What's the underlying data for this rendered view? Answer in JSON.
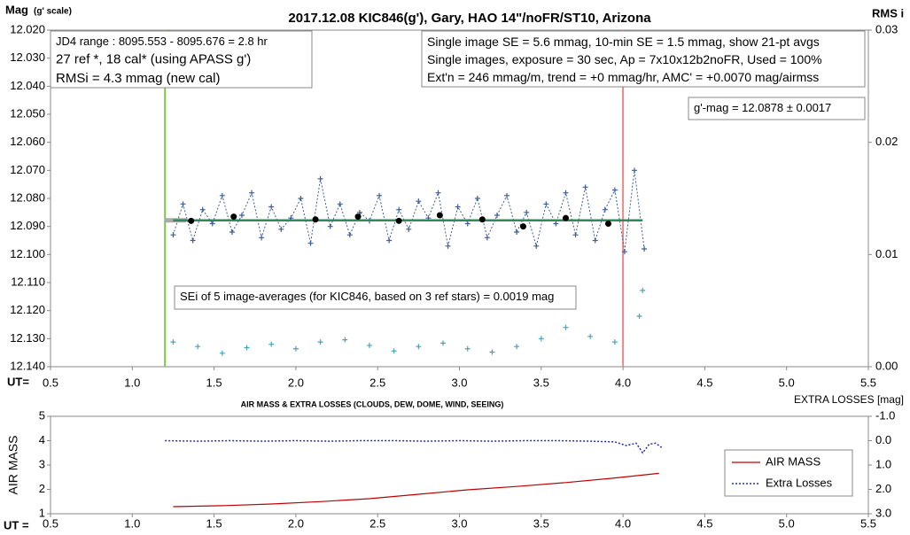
{
  "chart_data": [
    {
      "type": "line",
      "title": "2017.12.08  KIC846(g'),  Gary, HAO  14\"/noFR/ST10,  Arizona",
      "y_label": "Mag",
      "y_label_note": "(g' scale)",
      "y2_label": "RMS i",
      "x_label": "UT=",
      "xlim": [
        0.5,
        5.5
      ],
      "xticks": [
        0.5,
        {
          "value": 1,
          "label": "1.0"
        },
        1.5,
        {
          "value": 2,
          "label": "2.0"
        },
        2.5,
        {
          "value": 3,
          "label": "3.0"
        },
        3.5,
        {
          "value": 4,
          "label": "4.0"
        },
        4.5,
        {
          "value": 5,
          "label": "5.0"
        },
        5.5
      ],
      "ylim": [
        12.14,
        12.02
      ],
      "yticks": [
        {
          "value": 12.02,
          "label": "12.020"
        },
        {
          "value": 12.03,
          "label": "12.030"
        },
        {
          "value": 12.04,
          "label": "12.040"
        },
        {
          "value": 12.05,
          "label": "12.050"
        },
        {
          "value": 12.06,
          "label": "12.060"
        },
        {
          "value": 12.07,
          "label": "12.070"
        },
        {
          "value": 12.08,
          "label": "12.080"
        },
        {
          "value": 12.09,
          "label": "12.090"
        },
        {
          "value": 12.1,
          "label": "12.100"
        },
        {
          "value": 12.11,
          "label": "12.110"
        },
        {
          "value": 12.12,
          "label": "12.120"
        },
        {
          "value": 12.13,
          "label": "12.130"
        },
        {
          "value": 12.14,
          "label": "12.140"
        }
      ],
      "y2lim": [
        0,
        0.03
      ],
      "y2ticks": [
        {
          "value": 0,
          "label": "0.00"
        },
        {
          "value": 0.01,
          "label": "0.01"
        },
        {
          "value": 0.02,
          "label": "0.02"
        },
        {
          "value": 0.03,
          "label": "0.03"
        }
      ],
      "vlines": [
        {
          "x": 1.2,
          "color": "#7ac943"
        },
        {
          "x": 4.0,
          "color": "#ee8888"
        }
      ],
      "series": [
        {
          "color": "#aaaaaa",
          "line": "solid",
          "width": 5,
          "marker": "none",
          "x": [
            1.2,
            1.33
          ],
          "values": [
            12.0878,
            12.0878
          ]
        },
        {
          "color": "#3d5e9e",
          "line": "dotted",
          "width": 1,
          "marker": "cross",
          "x": [
            1.25,
            1.31,
            1.37,
            1.43,
            1.49,
            1.55,
            1.61,
            1.67,
            1.73,
            1.79,
            1.85,
            1.91,
            1.97,
            2.03,
            2.09,
            2.15,
            2.21,
            2.27,
            2.33,
            2.39,
            2.45,
            2.51,
            2.57,
            2.63,
            2.69,
            2.75,
            2.81,
            2.87,
            2.93,
            2.99,
            3.05,
            3.11,
            3.17,
            3.23,
            3.29,
            3.35,
            3.41,
            3.47,
            3.53,
            3.59,
            3.65,
            3.71,
            3.77,
            3.83,
            3.89,
            3.95,
            4.01,
            4.07,
            4.13
          ],
          "values": [
            12.093,
            12.082,
            12.095,
            12.084,
            12.089,
            12.079,
            12.092,
            12.086,
            12.078,
            12.094,
            12.083,
            12.091,
            12.087,
            12.08,
            12.096,
            12.073,
            12.09,
            12.082,
            12.093,
            12.085,
            12.088,
            12.079,
            12.095,
            12.084,
            12.091,
            12.081,
            12.087,
            12.078,
            12.097,
            12.083,
            12.089,
            12.08,
            12.094,
            12.086,
            12.079,
            12.092,
            12.085,
            12.097,
            12.082,
            12.089,
            12.078,
            12.093,
            12.076,
            12.095,
            12.084,
            12.077,
            12.099,
            12.07,
            12.098
          ]
        },
        {
          "color": "#2e8b57",
          "line": "solid",
          "width": 2.5,
          "marker": "none",
          "x": [
            1.25,
            4.12
          ],
          "values": [
            12.0878,
            12.0878
          ]
        },
        {
          "color": "#000000",
          "line": "none",
          "marker": "dot",
          "x": [
            1.36,
            1.62,
            2.12,
            2.38,
            2.63,
            2.88,
            3.14,
            3.39,
            3.65,
            3.91
          ],
          "values": [
            12.088,
            12.0865,
            12.0875,
            12.0865,
            12.088,
            12.086,
            12.0875,
            12.09,
            12.087,
            12.089
          ]
        },
        {
          "color": "#4aa3b5",
          "line": "none",
          "marker": "cross",
          "axis": "y2",
          "x": [
            1.25,
            1.4,
            1.55,
            1.7,
            1.85,
            2.0,
            2.15,
            2.3,
            2.45,
            2.6,
            2.75,
            2.9,
            3.05,
            3.2,
            3.35,
            3.5,
            3.65,
            3.8,
            3.95,
            4.1,
            4.12
          ],
          "values": [
            0.0022,
            0.0018,
            0.0012,
            0.0017,
            0.002,
            0.0016,
            0.0022,
            0.0024,
            0.0019,
            0.0014,
            0.0018,
            0.0021,
            0.0016,
            0.0013,
            0.0018,
            0.0025,
            0.0035,
            0.0027,
            0.0022,
            0.0045,
            0.0068
          ]
        }
      ],
      "annotations": [
        {
          "lines": [
            "JD4 range : 8095.553 - 8095.676 = 2.8  hr",
            "27 ref *, 18 cal* (using APASS g')",
            "RMSi = 4.3 mmag (new cal)"
          ]
        },
        {
          "lines": [
            "Single image SE = 5.6 mmag, 10-min SE = 1.5 mmag, show  21-pt avgs",
            "Single images, exposure = 30 sec, Ap = 7x10x12b2noFR,  Used = 100%",
            "Ext'n = 246 mmag/m, trend =  +0 mmag/hr, AMC' = +0.0070 mag/airmss"
          ]
        },
        {
          "lines": [
            "g'-mag = 12.0878 ± 0.0017"
          ]
        },
        {
          "lines": [
            "SEi of 5 image-averages (for KIC846, based on 3 ref stars) = 0.0019  mag"
          ]
        }
      ]
    },
    {
      "type": "line",
      "title": "AIR MASS & EXTRA LOSSES (CLOUDS, DEW, DOME, WIND, SEEING)",
      "y_label": "AIR MASS",
      "y2_label": "EXTRA LOSSES [mag]",
      "x_label": "UT =",
      "xlim": [
        0.5,
        5.5
      ],
      "xticks": [
        0.5,
        {
          "value": 1,
          "label": "1.0"
        },
        1.5,
        {
          "value": 2,
          "label": "2.0"
        },
        2.5,
        {
          "value": 3,
          "label": "3.0"
        },
        3.5,
        {
          "value": 4,
          "label": "4.0"
        },
        4.5,
        {
          "value": 5,
          "label": "5.0"
        },
        5.5
      ],
      "ylim": [
        1,
        5
      ],
      "yticks": [
        1,
        2,
        3,
        4,
        5
      ],
      "y2lim": [
        3,
        -1
      ],
      "y2ticks": [
        {
          "value": -1,
          "label": "-1.0"
        },
        {
          "value": 0,
          "label": "0.0"
        },
        {
          "value": 1,
          "label": "1.0"
        },
        {
          "value": 2,
          "label": "2.0"
        },
        {
          "value": 3,
          "label": "3.0"
        }
      ],
      "legend": "lower right",
      "series": [
        {
          "name": "AIR MASS",
          "color": "#c00000",
          "line": "solid",
          "width": 1.2,
          "marker": "none",
          "x": [
            1.25,
            1.55,
            1.85,
            2.15,
            2.45,
            2.75,
            3.05,
            3.35,
            3.65,
            3.95,
            4.22
          ],
          "values": [
            1.29,
            1.33,
            1.4,
            1.5,
            1.62,
            1.8,
            1.98,
            2.12,
            2.28,
            2.47,
            2.66
          ]
        },
        {
          "name": "Extra Losses",
          "color": "#1f2fa0",
          "line": "dotted",
          "width": 1.5,
          "marker": "none",
          "axis": "y2",
          "x": [
            1.2,
            1.4,
            1.6,
            1.8,
            2.0,
            2.2,
            2.4,
            2.6,
            2.8,
            3.0,
            3.2,
            3.4,
            3.6,
            3.8,
            3.95,
            4.02,
            4.08,
            4.12,
            4.16,
            4.2,
            4.24
          ],
          "values": [
            0.0,
            0.02,
            0.0,
            0.02,
            0.0,
            0.02,
            0.0,
            0.0,
            0.02,
            0.0,
            0.02,
            0.0,
            0.0,
            0.02,
            0.05,
            0.2,
            0.1,
            0.5,
            0.15,
            0.1,
            0.3
          ]
        }
      ]
    }
  ]
}
